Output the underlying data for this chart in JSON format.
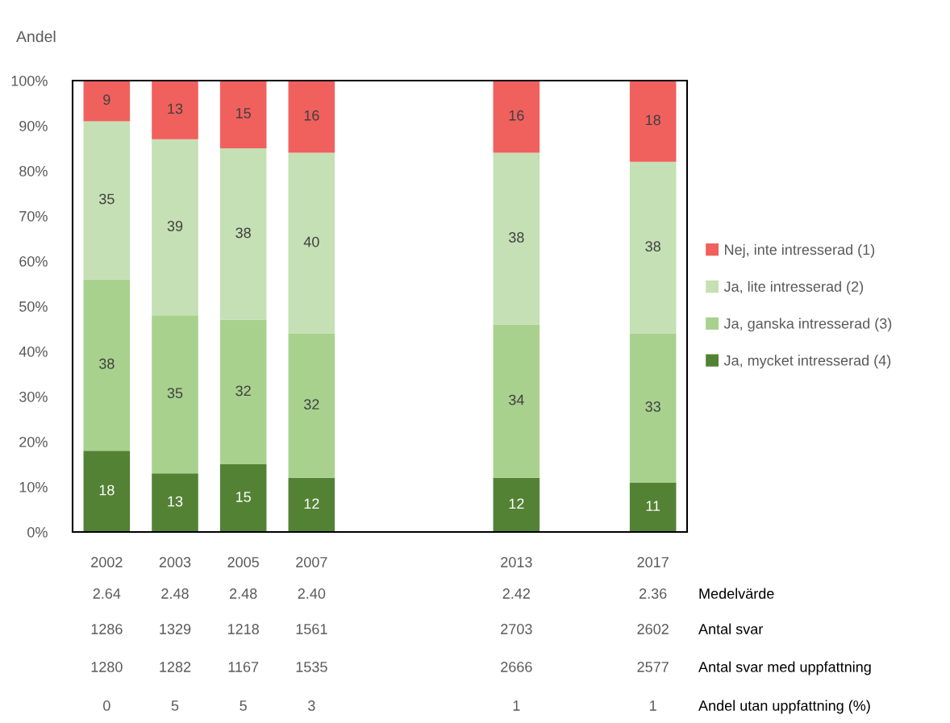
{
  "chart_data": {
    "type": "bar",
    "stacked": true,
    "ylabel": "Andel",
    "categories": [
      "2002",
      "2003",
      "2005",
      "2007",
      null,
      null,
      "2013",
      null,
      "2017"
    ],
    "series": [
      {
        "name": "Ja, mycket intresserad (4)",
        "color": "#548235",
        "values": [
          18,
          13,
          15,
          12,
          null,
          null,
          12,
          null,
          11
        ]
      },
      {
        "name": "Ja, ganska intresserad (3)",
        "color": "#a9d18e",
        "values": [
          38,
          35,
          32,
          32,
          null,
          null,
          34,
          null,
          33
        ]
      },
      {
        "name": "Ja, lite intresserad (2)",
        "color": "#c5e0b4",
        "values": [
          35,
          39,
          38,
          40,
          null,
          null,
          38,
          null,
          38
        ]
      },
      {
        "name": "Nej, inte intresserad (1)",
        "color": "#f0605d",
        "values": [
          9,
          13,
          15,
          16,
          null,
          null,
          16,
          null,
          18
        ]
      }
    ],
    "ylim": [
      0,
      100
    ],
    "yticks": [
      {
        "value": 0,
        "label": "0%"
      },
      {
        "value": 10,
        "label": "10%"
      },
      {
        "value": 20,
        "label": "20%"
      },
      {
        "value": 30,
        "label": "30%"
      },
      {
        "value": 40,
        "label": "40%"
      },
      {
        "value": 50,
        "label": "50%"
      },
      {
        "value": 60,
        "label": "60%"
      },
      {
        "value": 70,
        "label": "70%"
      },
      {
        "value": 80,
        "label": "80%"
      },
      {
        "value": 90,
        "label": "90%"
      },
      {
        "value": 100,
        "label": "100%"
      }
    ],
    "grid": false,
    "legend": "right",
    "data_labels": true,
    "annotations": [
      "2.64",
      "2.48",
      "2.48",
      "2.40",
      "2.42",
      "2.36",
      "Medelvärde",
      "1286",
      "1329",
      "1218",
      "1561",
      "2703",
      "2602",
      "Antal svar",
      "1280",
      "1282",
      "1167",
      "1535",
      "2666",
      "2577",
      "Antal svar med uppfattning",
      "0",
      "5",
      "5",
      "3",
      "1",
      "1",
      "Andel utan uppfattning (%)"
    ]
  }
}
